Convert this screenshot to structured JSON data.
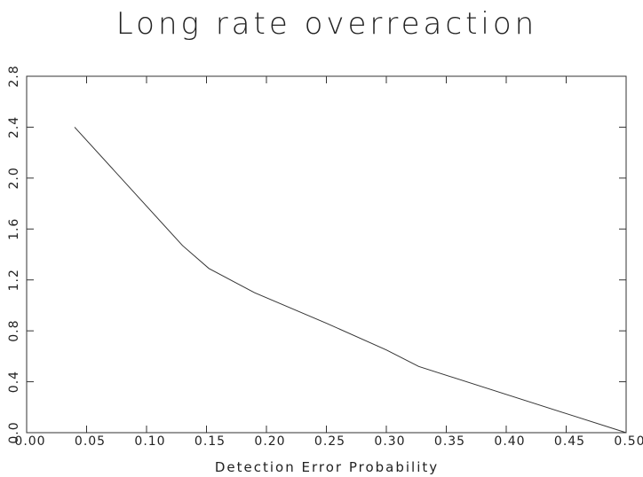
{
  "chart_data": {
    "type": "line",
    "title": "Long rate overreaction",
    "xlabel": "Detection Error Probability",
    "ylabel": "",
    "xlim": [
      0.0,
      0.5
    ],
    "ylim": [
      0.0,
      2.8
    ],
    "xticks": [
      "0.00",
      "0.05",
      "0.10",
      "0.15",
      "0.20",
      "0.25",
      "0.30",
      "0.35",
      "0.40",
      "0.45",
      "0.50"
    ],
    "yticks": [
      "0.0",
      "0.4",
      "0.8",
      "1.2",
      "1.6",
      "2.0",
      "2.4",
      "2.8"
    ],
    "grid": false,
    "series": [
      {
        "name": "",
        "color": "#333333",
        "x": [
          0.04,
          0.13,
          0.152,
          0.19,
          0.25,
          0.3,
          0.327,
          0.45,
          0.5
        ],
        "y": [
          2.4,
          1.47,
          1.29,
          1.1,
          0.86,
          0.65,
          0.52,
          0.15,
          0.0
        ]
      }
    ]
  }
}
